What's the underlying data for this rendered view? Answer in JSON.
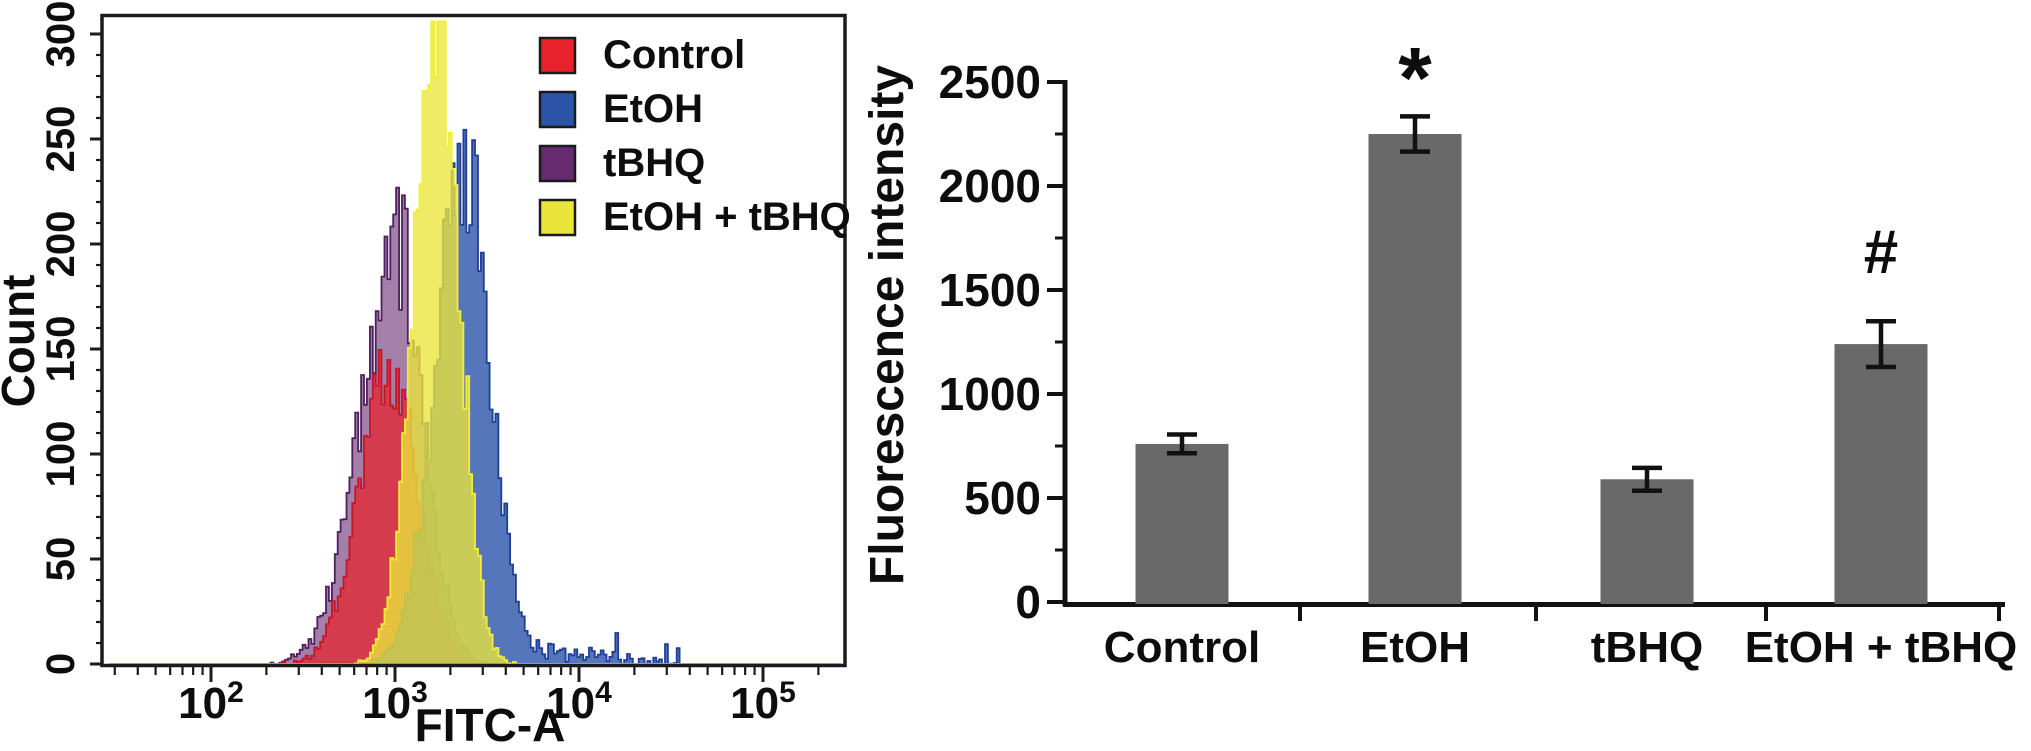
{
  "figure": {
    "background": "#ffffff",
    "text_color": "#0d0d0d"
  },
  "chart_data": [
    {
      "type": "area",
      "subtype": "flow-cytometry-overlay-histogram",
      "title": "",
      "xlabel": "FITC-A",
      "ylabel": "Count",
      "x_scale": "log10",
      "x_tick_exponents": [
        2,
        3,
        4,
        5
      ],
      "x_range_log10": [
        1.45,
        5.42
      ],
      "ylim": [
        0,
        300
      ],
      "y_ticks": [
        0,
        50,
        100,
        150,
        200,
        250,
        300
      ],
      "y_minor_step": 10,
      "grid": false,
      "legend_position": "top-right-inside",
      "legend": [
        {
          "label": "Control",
          "color": "#e8222a"
        },
        {
          "label": "EtOH",
          "color": "#2b54a9"
        },
        {
          "label": "tBHQ",
          "color": "#662a70"
        },
        {
          "label": "EtOH + tBHQ",
          "color": "#ebe53b"
        }
      ],
      "series": [
        {
          "name": "Control",
          "color": "#e8222a",
          "peak_x": 900,
          "peak_log10": 2.96,
          "sigma_left": 0.165,
          "sigma_right": 0.15,
          "peak_count": 140
        },
        {
          "name": "EtOH",
          "color": "#2b54a9",
          "peak_x": 2340,
          "peak_log10": 3.37,
          "sigma_left": 0.155,
          "sigma_right": 0.14,
          "peak_count": 236,
          "tail_log10": 3.9,
          "tail_sigma": 0.28,
          "tail_height": 9
        },
        {
          "name": "tBHQ",
          "color": "#662a70",
          "peak_x": 1020,
          "peak_log10": 3.01,
          "sigma_left": 0.2,
          "sigma_right": 0.14,
          "peak_count": 197
        },
        {
          "name": "EtOH + tBHQ",
          "color": "#ebe53b",
          "peak_x": 1700,
          "peak_log10": 3.23,
          "sigma_left": 0.13,
          "sigma_right": 0.115,
          "peak_count": 303
        }
      ],
      "draw_order": [
        2,
        0,
        1,
        3
      ]
    },
    {
      "type": "bar",
      "categories": [
        "Control",
        "EtOH",
        "tBHQ",
        "EtOH + tBHQ"
      ],
      "values": [
        760,
        2250,
        590,
        1240
      ],
      "errors": [
        45,
        85,
        55,
        110
      ],
      "annotations": [
        "",
        "*",
        "",
        "#"
      ],
      "ylabel": "Fluorescence intensity",
      "ylim": [
        0,
        2500
      ],
      "y_ticks": [
        0,
        500,
        1000,
        1500,
        2000,
        2500
      ],
      "y_minor_step": 250,
      "bar_color": "#696969",
      "error_color": "#111111",
      "grid": false
    }
  ]
}
